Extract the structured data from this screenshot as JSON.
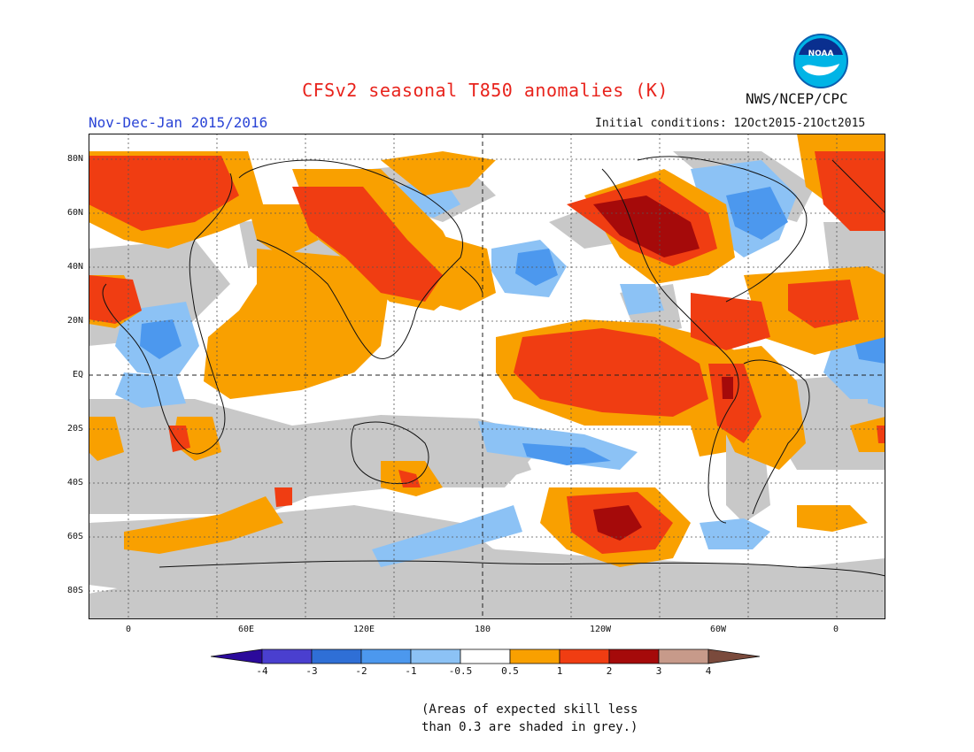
{
  "title": "CFSv2 seasonal T850 anomalies (K)",
  "agency": "NWS/NCEP/CPC",
  "logo_text": "NOAA",
  "period": "Nov-Dec-Jan 2015/2016",
  "initial_conditions": "Initial conditions: 12Oct2015-21Oct2015",
  "lat_labels": [
    "80N",
    "60N",
    "40N",
    "20N",
    "EQ",
    "20S",
    "40S",
    "60S",
    "80S"
  ],
  "lon_labels": [
    "0",
    "60E",
    "120E",
    "180",
    "120W",
    "60W",
    "0"
  ],
  "colorbar": {
    "labels": [
      "-4",
      "-3",
      "-2",
      "-1",
      "-0.5",
      "0.5",
      "1",
      "2",
      "3",
      "4"
    ],
    "colors": [
      "#2b0a9b",
      "#4a3fcf",
      "#2f6fd6",
      "#4c98ee",
      "#8cc2f5",
      "#ffffff",
      "#f9a000",
      "#f03d12",
      "#a50a0a",
      "#c79a8a",
      "#7a4a3c"
    ]
  },
  "note_line1": "(Areas of expected skill less",
  "note_line2": "than 0.3 are shaded in grey.)",
  "colors": {
    "title": "#e8231c",
    "period": "#2a44d6",
    "grey": "#c8c8c8"
  }
}
